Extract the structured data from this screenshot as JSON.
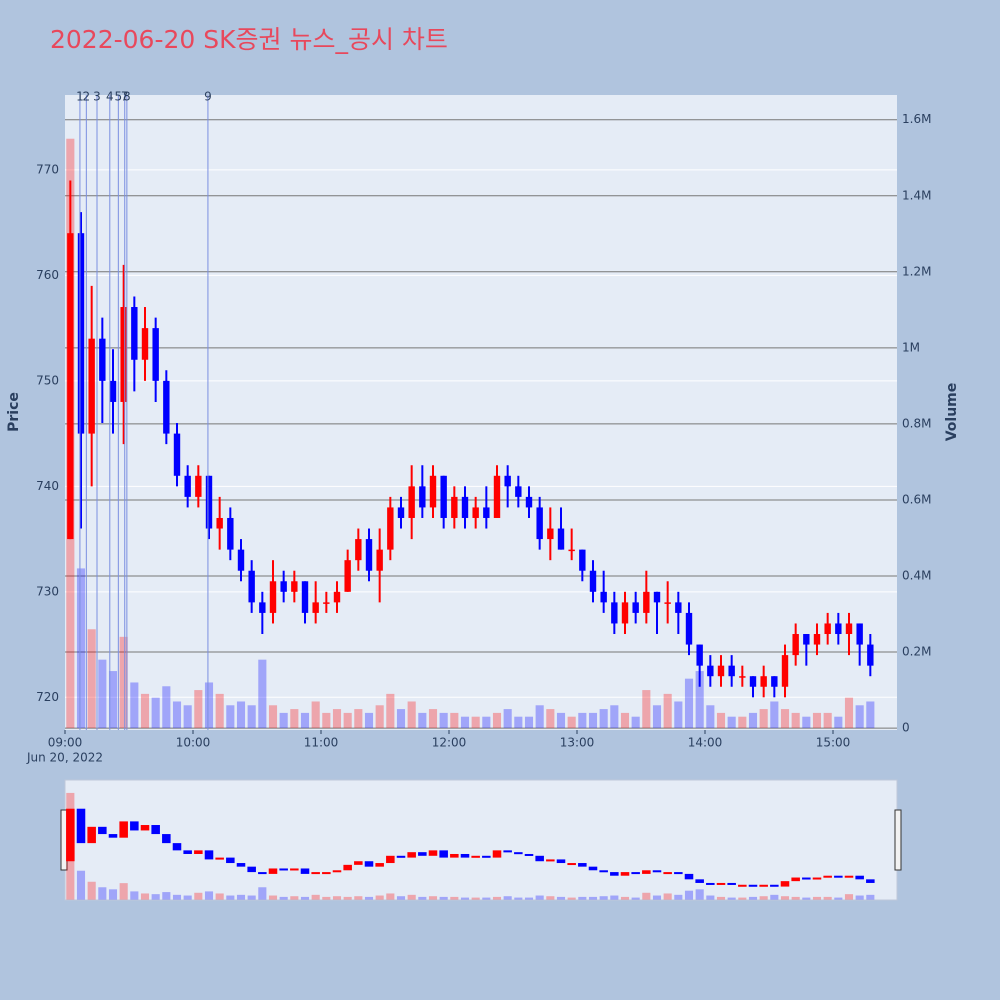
{
  "chart_data": {
    "type": "candlestick",
    "title": "2022-06-20 SK증권 뉴스_공시 차트",
    "y_axis_label": "Price",
    "y2_axis_label": "Volume",
    "x_date_label": "Jun 20, 2022",
    "x": [
      "2022-06-20 09:00",
      "2022-06-20 09:05",
      "2022-06-20 09:10",
      "2022-06-20 09:15",
      "2022-06-20 09:20",
      "2022-06-20 09:25",
      "2022-06-20 09:30",
      "2022-06-20 09:35",
      "2022-06-20 09:40",
      "2022-06-20 09:45",
      "2022-06-20 09:50",
      "2022-06-20 09:55",
      "2022-06-20 10:00",
      "2022-06-20 10:05",
      "2022-06-20 10:10",
      "2022-06-20 10:15",
      "2022-06-20 10:20",
      "2022-06-20 10:25",
      "2022-06-20 10:30",
      "2022-06-20 10:35",
      "2022-06-20 10:40",
      "2022-06-20 10:45",
      "2022-06-20 10:50",
      "2022-06-20 10:55",
      "2022-06-20 11:00",
      "2022-06-20 11:05",
      "2022-06-20 11:10",
      "2022-06-20 11:15",
      "2022-06-20 11:20",
      "2022-06-20 11:25",
      "2022-06-20 11:30",
      "2022-06-20 11:35",
      "2022-06-20 11:40",
      "2022-06-20 11:45",
      "2022-06-20 11:50",
      "2022-06-20 11:55",
      "2022-06-20 12:00",
      "2022-06-20 12:05",
      "2022-06-20 12:10",
      "2022-06-20 12:15",
      "2022-06-20 12:20",
      "2022-06-20 12:25",
      "2022-06-20 12:30",
      "2022-06-20 12:35",
      "2022-06-20 12:40",
      "2022-06-20 12:45",
      "2022-06-20 12:50",
      "2022-06-20 12:55",
      "2022-06-20 13:00",
      "2022-06-20 13:05",
      "2022-06-20 13:10",
      "2022-06-20 13:15",
      "2022-06-20 13:20",
      "2022-06-20 13:25",
      "2022-06-20 13:30",
      "2022-06-20 13:35",
      "2022-06-20 13:40",
      "2022-06-20 13:45",
      "2022-06-20 13:50",
      "2022-06-20 13:55",
      "2022-06-20 14:00",
      "2022-06-20 14:05",
      "2022-06-20 14:10",
      "2022-06-20 14:15",
      "2022-06-20 14:20",
      "2022-06-20 14:25",
      "2022-06-20 14:30",
      "2022-06-20 14:35",
      "2022-06-20 14:40",
      "2022-06-20 14:45",
      "2022-06-20 14:50",
      "2022-06-20 14:55",
      "2022-06-20 15:00",
      "2022-06-20 15:05",
      "2022-06-20 15:10",
      "2022-06-20 15:15"
    ],
    "open": [
      735,
      764,
      745,
      754,
      750,
      748,
      757,
      752,
      755,
      750,
      745,
      741,
      739,
      741,
      736,
      737,
      734,
      732,
      729,
      728,
      731,
      730,
      731,
      728,
      729,
      729,
      730,
      733,
      735,
      732,
      734,
      738,
      737,
      740,
      738,
      741,
      737,
      739,
      737,
      738,
      737,
      741,
      740,
      739,
      738,
      735,
      736,
      734,
      734,
      732,
      730,
      729,
      727,
      729,
      728,
      730,
      729,
      729,
      728,
      725,
      723,
      722,
      723,
      722,
      722,
      721,
      722,
      721,
      724,
      726,
      725,
      726,
      727,
      726,
      727,
      725
    ],
    "high": [
      769,
      766,
      759,
      756,
      753,
      761,
      758,
      757,
      756,
      751,
      746,
      742,
      742,
      741,
      739,
      738,
      735,
      733,
      730,
      733,
      732,
      732,
      731,
      731,
      730,
      731,
      734,
      736,
      736,
      736,
      739,
      739,
      742,
      742,
      742,
      741,
      740,
      740,
      739,
      740,
      742,
      742,
      741,
      740,
      739,
      738,
      738,
      736,
      734,
      733,
      732,
      730,
      730,
      730,
      732,
      730,
      731,
      730,
      729,
      725,
      724,
      724,
      724,
      723,
      722,
      723,
      722,
      725,
      727,
      726,
      727,
      728,
      728,
      728,
      727,
      726
    ],
    "low": [
      735,
      736,
      740,
      746,
      745,
      744,
      749,
      750,
      748,
      744,
      740,
      738,
      738,
      735,
      734,
      733,
      731,
      728,
      726,
      727,
      729,
      729,
      727,
      727,
      728,
      728,
      730,
      732,
      731,
      729,
      733,
      736,
      735,
      737,
      737,
      736,
      736,
      736,
      736,
      736,
      737,
      738,
      738,
      737,
      734,
      733,
      734,
      733,
      731,
      729,
      728,
      726,
      726,
      727,
      727,
      726,
      727,
      726,
      724,
      721,
      721,
      721,
      721,
      721,
      720,
      720,
      720,
      720,
      723,
      723,
      724,
      725,
      725,
      724,
      723,
      722
    ],
    "close": [
      764,
      745,
      754,
      750,
      748,
      757,
      752,
      755,
      750,
      745,
      741,
      739,
      741,
      736,
      737,
      734,
      732,
      729,
      728,
      731,
      730,
      731,
      728,
      729,
      729,
      730,
      733,
      735,
      732,
      734,
      738,
      737,
      740,
      738,
      741,
      737,
      739,
      737,
      738,
      737,
      741,
      740,
      739,
      738,
      735,
      736,
      734,
      734,
      732,
      730,
      729,
      727,
      729,
      728,
      730,
      729,
      729,
      728,
      725,
      723,
      722,
      723,
      722,
      722,
      721,
      722,
      721,
      724,
      726,
      725,
      726,
      727,
      726,
      727,
      725,
      723
    ],
    "volume": [
      1550000,
      420000,
      260000,
      180000,
      150000,
      240000,
      120000,
      90000,
      80000,
      110000,
      70000,
      60000,
      100000,
      120000,
      90000,
      60000,
      70000,
      60000,
      180000,
      60000,
      40000,
      50000,
      40000,
      70000,
      40000,
      50000,
      40000,
      50000,
      40000,
      60000,
      90000,
      50000,
      70000,
      40000,
      50000,
      40000,
      40000,
      30000,
      30000,
      30000,
      40000,
      50000,
      30000,
      30000,
      60000,
      50000,
      40000,
      30000,
      40000,
      40000,
      50000,
      60000,
      40000,
      30000,
      100000,
      60000,
      90000,
      70000,
      130000,
      150000,
      60000,
      40000,
      30000,
      30000,
      40000,
      50000,
      70000,
      50000,
      40000,
      30000,
      40000,
      40000,
      30000,
      80000,
      60000,
      70000
    ],
    "increasing_color": "#ff0000",
    "decreasing_color": "#0000ff",
    "volume_opacity": 0.3,
    "news": [
      {
        "label": "1",
        "x": "2022-06-20 09:07"
      },
      {
        "label": "2",
        "x": "2022-06-20 09:10"
      },
      {
        "label": "3",
        "x": "2022-06-20 09:15"
      },
      {
        "label": "4",
        "x": "2022-06-20 09:21"
      },
      {
        "label": "5",
        "x": "2022-06-20 09:25"
      },
      {
        "label": "7",
        "x": "2022-06-20 09:28"
      },
      {
        "label": "8",
        "x": "2022-06-20 09:29"
      },
      {
        "label": "9",
        "x": "2022-06-20 10:07"
      }
    ],
    "xlim": [
      "2022-06-20 09:00",
      "2022-06-20 15:30"
    ],
    "xticks": [
      {
        "value": "2022-06-20 09:00",
        "label": "09:00"
      },
      {
        "value": "2022-06-20 10:00",
        "label": "10:00"
      },
      {
        "value": "2022-06-20 11:00",
        "label": "11:00"
      },
      {
        "value": "2022-06-20 12:00",
        "label": "12:00"
      },
      {
        "value": "2022-06-20 13:00",
        "label": "13:00"
      },
      {
        "value": "2022-06-20 14:00",
        "label": "14:00"
      },
      {
        "value": "2022-06-20 15:00",
        "label": "15:00"
      }
    ],
    "ylim": [
      716.9,
      777.1
    ],
    "yticks": [
      720,
      730,
      740,
      750,
      760,
      770
    ],
    "y2lim": [
      -5000,
      1665000
    ],
    "y2ticks": [
      0,
      {
        "value": 200000,
        "label": "0.2M"
      },
      {
        "value": 400000,
        "label": "0.4M"
      },
      {
        "value": 600000,
        "label": "0.6M"
      },
      {
        "value": 800000,
        "label": "0.8M"
      },
      {
        "value": 1000000,
        "label": "1M"
      },
      {
        "value": 1200000,
        "label": "1.2M"
      },
      {
        "value": 1400000,
        "label": "1.4M"
      },
      {
        "value": 1600000,
        "label": "1.6M"
      }
    ],
    "grid": true,
    "range_slider": true
  }
}
